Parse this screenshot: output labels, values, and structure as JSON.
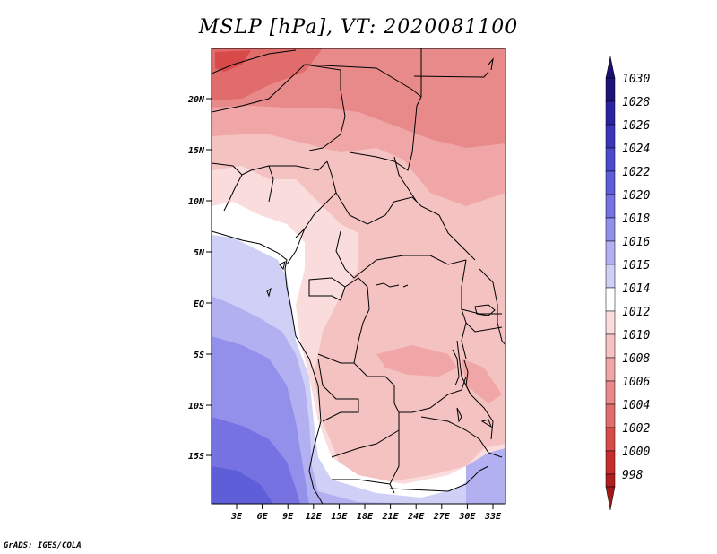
{
  "title": "MSLP [hPa], VT: 2020081100",
  "footer": "GrADS: IGES/COLA",
  "lat_ticks": [
    "20N",
    "15N",
    "10N",
    "5N",
    "EQ",
    "5S",
    "10S",
    "15S"
  ],
  "lon_ticks": [
    "3E",
    "6E",
    "9E",
    "12E",
    "15E",
    "18E",
    "21E",
    "24E",
    "27E",
    "30E",
    "33E"
  ],
  "colorbar": [
    {
      "label": "1030",
      "color": "#1e1478"
    },
    {
      "label": "1028",
      "color": "#2a22a0"
    },
    {
      "label": "1026",
      "color": "#3a36b8"
    },
    {
      "label": "1024",
      "color": "#4a4acb"
    },
    {
      "label": "1022",
      "color": "#5e5ed8"
    },
    {
      "label": "1020",
      "color": "#7672e2"
    },
    {
      "label": "1018",
      "color": "#9290ea"
    },
    {
      "label": "1016",
      "color": "#b2b0f0"
    },
    {
      "label": "1015",
      "color": "#d0d0f6"
    },
    {
      "label": "1014",
      "color": "#ffffff"
    },
    {
      "label": "1012",
      "color": "#fadcdc"
    },
    {
      "label": "1010",
      "color": "#f5c2c2"
    },
    {
      "label": "1008",
      "color": "#f0a6a6"
    },
    {
      "label": "1006",
      "color": "#e98a8a"
    },
    {
      "label": "1004",
      "color": "#e16c6c"
    },
    {
      "label": "1002",
      "color": "#d84a4a"
    },
    {
      "label": "1000",
      "color": "#c82c2c"
    },
    {
      "label": "998",
      "color": "#b01e1e"
    }
  ],
  "colorbar_top_cap_color": "#1a1070",
  "colorbar_bottom_cap_color": "#a01818"
}
